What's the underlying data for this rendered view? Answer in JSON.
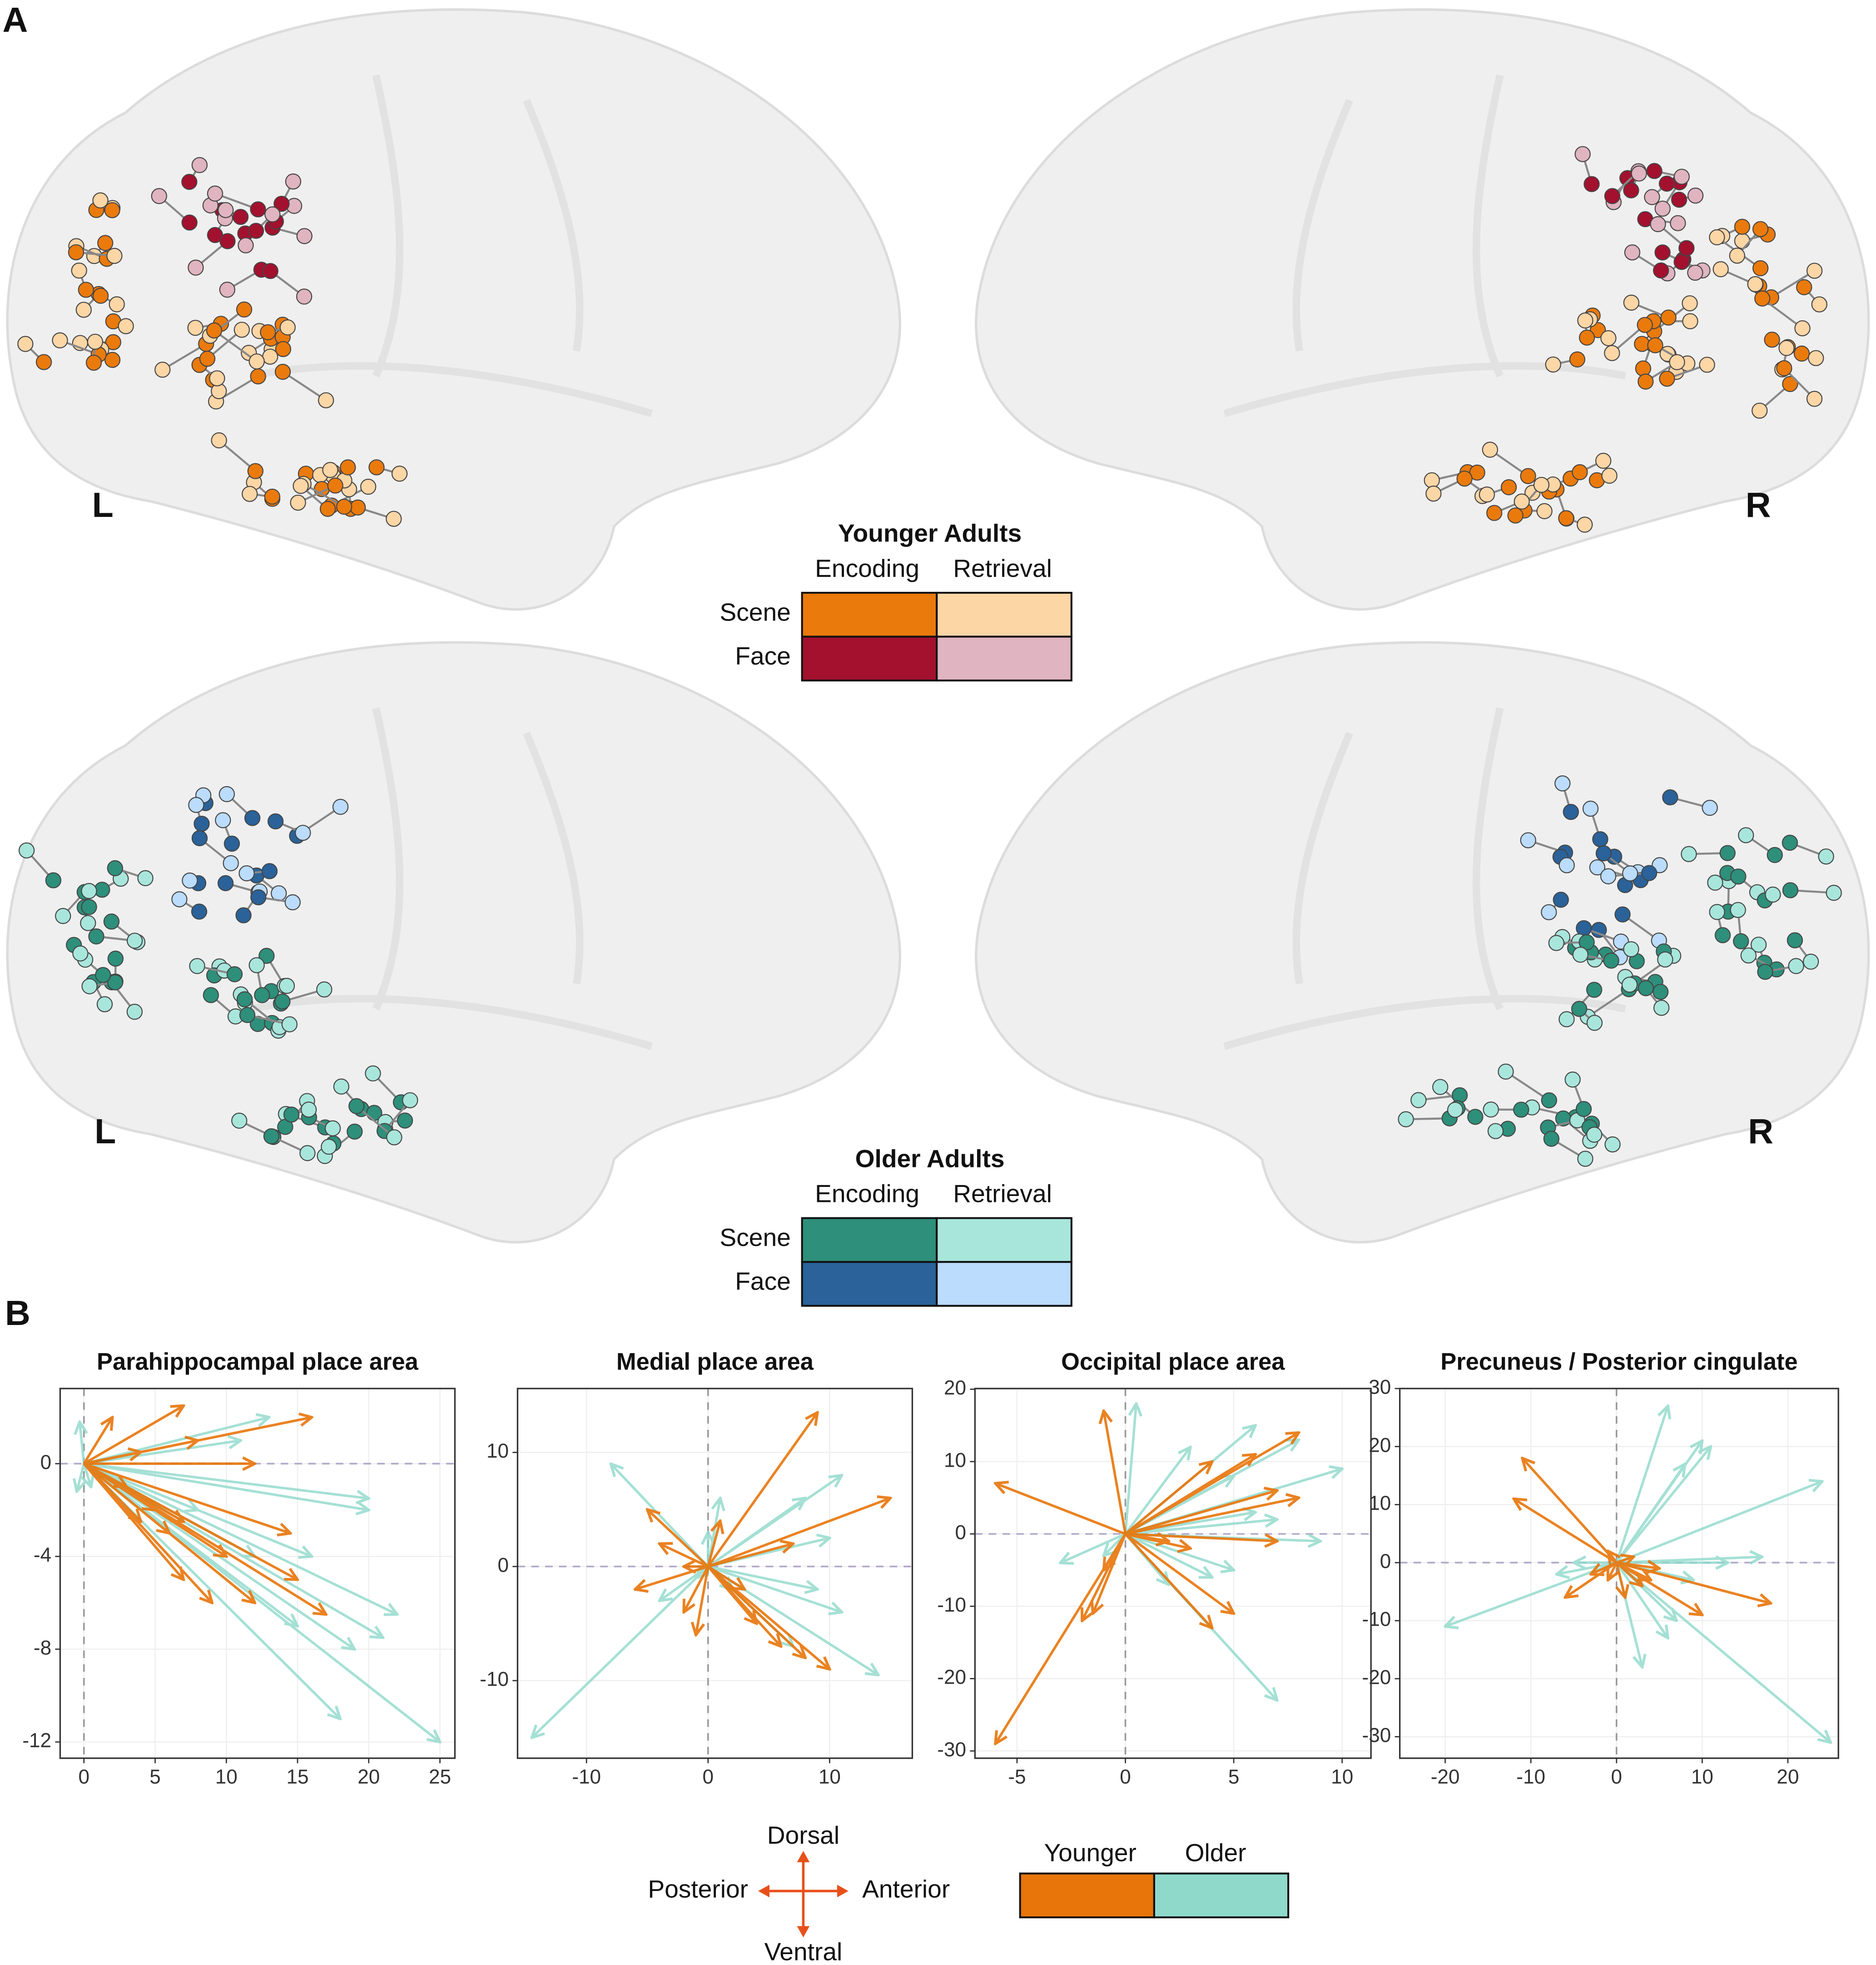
{
  "panel_labels": [
    "A",
    "B"
  ],
  "hemispheres": [
    "L",
    "R"
  ],
  "brain_legends": [
    {
      "title": "Younger Adults",
      "columns": [
        "Encoding",
        "Retrieval"
      ],
      "rows": [
        {
          "name": "Scene",
          "colors": [
            "#ea7a0c",
            "#fdd6a6"
          ]
        },
        {
          "name": "Face",
          "colors": [
            "#a3112f",
            "#e0b4c0"
          ]
        }
      ]
    },
    {
      "title": "Older Adults",
      "columns": [
        "Encoding",
        "Retrieval"
      ],
      "rows": [
        {
          "name": "Scene",
          "colors": [
            "#2e8f7a",
            "#a8e6dc"
          ]
        },
        {
          "name": "Face",
          "colors": [
            "#2a6299",
            "#bbdcfc"
          ]
        }
      ]
    }
  ],
  "direction_key": {
    "up": "Dorsal",
    "down": "Ventral",
    "left": "Posterior",
    "right": "Anterior",
    "color": "#e8501a"
  },
  "chart_data": [
    {
      "type": "vector",
      "title": "Parahippocampal place area",
      "xlim": [
        -1.67,
        26.05
      ],
      "ylim": [
        -12.7,
        3.24
      ],
      "xticks": [
        0,
        5,
        10,
        15,
        20,
        25
      ],
      "yticks": [
        0,
        -4,
        -8,
        -12
      ],
      "grid": true,
      "series": [
        {
          "name": "Younger",
          "color": "#e8750a",
          "x": [
            2,
            7,
            16,
            8,
            4,
            12,
            3,
            5,
            7,
            14.5,
            10,
            7,
            15,
            17,
            12,
            6,
            9,
            4
          ],
          "values": [
            2,
            2.5,
            2,
            1,
            0.5,
            0,
            -1,
            -2,
            -2.5,
            -3,
            -4,
            -5,
            -5,
            -6.5,
            -6,
            -3,
            -6,
            -2.5
          ]
        },
        {
          "name": "Older",
          "color": "#8fd9cb",
          "x": [
            13,
            11,
            20,
            20,
            22,
            21,
            19,
            18,
            25,
            15,
            0.5,
            -0.3,
            -0.5,
            12,
            8,
            16
          ],
          "values": [
            2,
            1,
            -2,
            -1.5,
            -6.5,
            -7.5,
            -8,
            -11,
            -12,
            -7,
            -1,
            1.8,
            -1.2,
            -4,
            -2,
            -4
          ]
        }
      ]
    },
    {
      "type": "vector",
      "title": "Medial place area",
      "xlim": [
        -15.67,
        16.8
      ],
      "ylim": [
        -16.8,
        15.6
      ],
      "xticks": [
        -10,
        0,
        10
      ],
      "yticks": [
        -10,
        0,
        10
      ],
      "grid": true,
      "series": [
        {
          "name": "Younger",
          "color": "#e8750a",
          "x": [
            9,
            15,
            7,
            -5,
            -4,
            -6,
            -2,
            -1,
            10,
            8,
            6,
            3,
            1,
            -2,
            4
          ],
          "values": [
            13.5,
            6,
            2,
            5,
            2,
            -2,
            -4,
            -6,
            -9,
            -8,
            -7,
            -2,
            4,
            0,
            -5
          ]
        },
        {
          "name": "Older",
          "color": "#8fd9cb",
          "x": [
            -8,
            -14.5,
            14,
            11,
            10,
            8,
            11,
            -4,
            1,
            2,
            9,
            7,
            0,
            -1
          ],
          "values": [
            9,
            -15,
            -9.5,
            -4,
            2.5,
            6,
            8,
            -3,
            6,
            -2,
            -2,
            -7,
            3,
            -1
          ]
        }
      ]
    },
    {
      "type": "vector",
      "title": "Occipital place area",
      "xlim": [
        -6.94,
        11.33
      ],
      "ylim": [
        -31,
        20.1
      ],
      "xticks": [
        -5,
        0,
        5,
        10
      ],
      "yticks": [
        -30,
        -20,
        -10,
        0,
        10,
        20
      ],
      "grid": true,
      "series": [
        {
          "name": "Younger",
          "color": "#e8750a",
          "x": [
            -6,
            -6,
            -1,
            -2,
            -1.5,
            2,
            4,
            8,
            8,
            7,
            4,
            5,
            3,
            7,
            6,
            -1
          ],
          "values": [
            7,
            -29,
            17,
            -12,
            -11,
            -1,
            10,
            14,
            5,
            -1,
            -13,
            -11,
            -2,
            6,
            11,
            -5
          ]
        },
        {
          "name": "Older",
          "color": "#8fd9cb",
          "x": [
            0.5,
            6,
            8,
            10,
            9,
            7,
            4,
            5,
            3,
            6,
            2,
            -1,
            5,
            7,
            -3
          ],
          "values": [
            18,
            15,
            13,
            9,
            -1,
            -23,
            -6,
            -5,
            12,
            3,
            -7,
            -3,
            8,
            2,
            -4
          ]
        }
      ]
    },
    {
      "type": "vector",
      "title": "Precuneus / Posterior cingulate",
      "xlim": [
        -25.3,
        25.9
      ],
      "ylim": [
        -33.7,
        30
      ],
      "xticks": [
        -20,
        -10,
        0,
        10,
        20
      ],
      "yticks": [
        -30,
        -20,
        -10,
        0,
        10,
        20,
        30
      ],
      "grid": true,
      "series": [
        {
          "name": "Younger",
          "color": "#e8750a",
          "x": [
            -11,
            -12,
            -6,
            -3,
            -1,
            4,
            10,
            18,
            3,
            2,
            -1,
            5,
            1
          ],
          "values": [
            18,
            11,
            -6,
            -2,
            -3,
            -3,
            -9,
            -7,
            -4,
            1,
            2,
            -1,
            -6
          ]
        },
        {
          "name": "Older",
          "color": "#8fd9cb",
          "x": [
            6,
            11,
            10,
            8,
            -20,
            -7,
            24,
            17,
            25,
            6,
            3,
            9,
            7,
            -5,
            13
          ],
          "values": [
            27,
            20,
            21,
            17,
            -11,
            -2,
            14,
            1,
            -31,
            -13,
            -18,
            -3,
            -10,
            0,
            0
          ]
        }
      ]
    }
  ]
}
